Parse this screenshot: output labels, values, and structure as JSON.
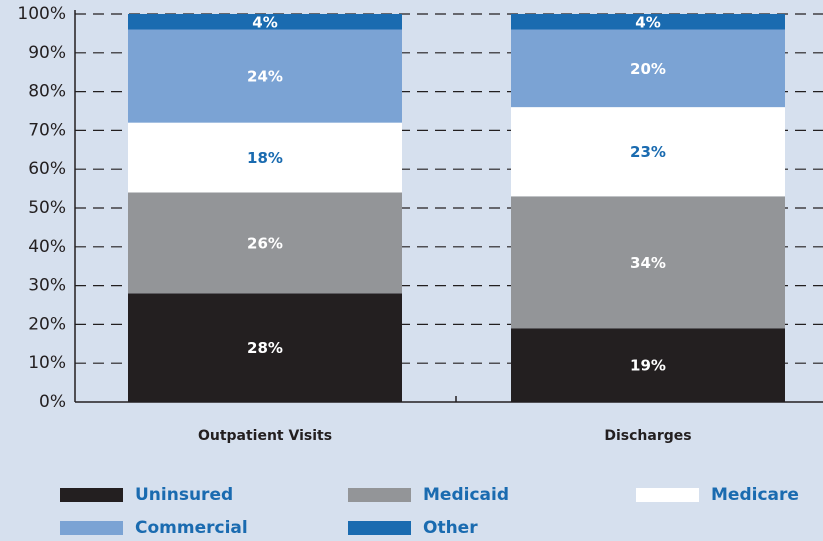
{
  "chart_data": {
    "type": "stacked_bar",
    "categories": [
      "Outpatient Visits",
      "Discharges"
    ],
    "series": [
      {
        "name": "Uninsured",
        "color": "#231f20",
        "label_color": "#ffffff",
        "values": [
          28,
          19
        ],
        "value_labels": [
          "28%",
          "19%"
        ]
      },
      {
        "name": "Medicaid",
        "color": "#939598",
        "label_color": "#ffffff",
        "values": [
          26,
          34
        ],
        "value_labels": [
          "26%",
          "34%"
        ]
      },
      {
        "name": "Medicare",
        "color": "#ffffff",
        "label_color": "#1a6bb0",
        "values": [
          18,
          23
        ],
        "value_labels": [
          "18%",
          "23%"
        ]
      },
      {
        "name": "Commercial",
        "color": "#7ba3d4",
        "label_color": "#ffffff",
        "values": [
          24,
          20
        ],
        "value_labels": [
          "24%",
          "20%"
        ]
      },
      {
        "name": "Other",
        "color": "#1a6bb0",
        "label_color": "#ffffff",
        "values": [
          4,
          4
        ],
        "value_labels": [
          "4%",
          "4%"
        ]
      }
    ],
    "ylim": [
      0,
      100
    ],
    "yticks": [
      {
        "value": 0,
        "label": "0%"
      },
      {
        "value": 10,
        "label": "10%"
      },
      {
        "value": 20,
        "label": "20%"
      },
      {
        "value": 30,
        "label": "30%"
      },
      {
        "value": 40,
        "label": "40%"
      },
      {
        "value": 50,
        "label": "50%"
      },
      {
        "value": 60,
        "label": "60%"
      },
      {
        "value": 70,
        "label": "70%"
      },
      {
        "value": 80,
        "label": "80%"
      },
      {
        "value": 90,
        "label": "90%"
      },
      {
        "value": 100,
        "label": "100%"
      }
    ],
    "grid": true
  }
}
